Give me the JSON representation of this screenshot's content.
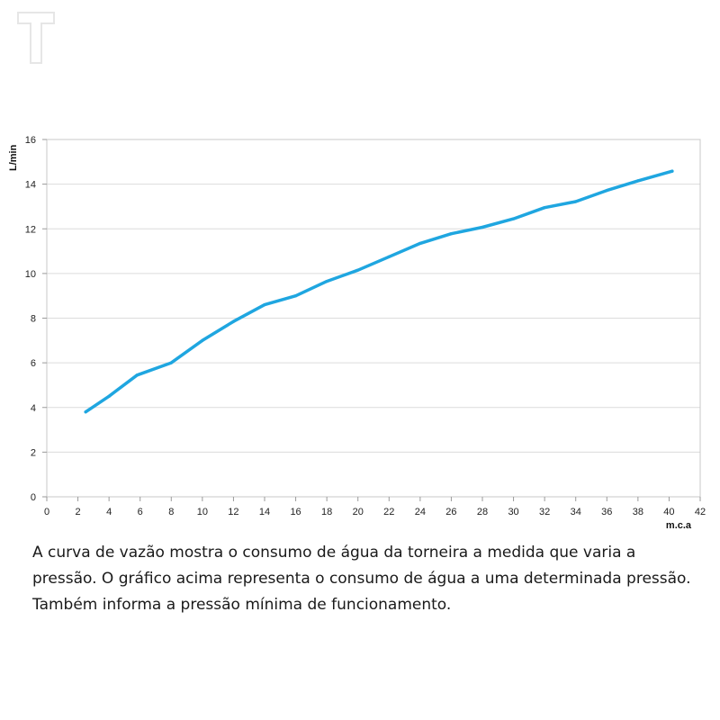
{
  "logo": {
    "icon": "brand-t-logo",
    "color": "#e6e6e6"
  },
  "chart_data": {
    "type": "line",
    "xlabel": "m.c.a",
    "ylabel": "L/min",
    "xlim": [
      0,
      42
    ],
    "ylim": [
      0,
      16
    ],
    "xticks": [
      0,
      2,
      4,
      6,
      8,
      10,
      12,
      14,
      16,
      18,
      20,
      22,
      24,
      26,
      28,
      30,
      32,
      34,
      36,
      38,
      40,
      42
    ],
    "yticks": [
      0,
      2,
      4,
      6,
      8,
      10,
      12,
      14,
      16
    ],
    "grid": true,
    "legend": "none",
    "series": [
      {
        "color": "#1fa6e0",
        "x": [
          2.5,
          4,
          5.8,
          8,
          10,
          12,
          14,
          16,
          18,
          20,
          22,
          24,
          26,
          28,
          30,
          32,
          34,
          36,
          38,
          40.2
        ],
        "y": [
          3.8,
          4.5,
          5.45,
          6.0,
          7.0,
          7.85,
          8.6,
          9.0,
          9.65,
          10.15,
          10.75,
          11.35,
          11.78,
          12.07,
          12.45,
          12.95,
          13.22,
          13.72,
          14.15,
          14.58
        ]
      }
    ]
  },
  "caption": "A curva de vazão mostra o consumo de água da torneira a medida que varia a pressão. O gráfico acima representa o consumo de água a uma determinada pressão. Também informa a pressão mínima de funcionamento."
}
